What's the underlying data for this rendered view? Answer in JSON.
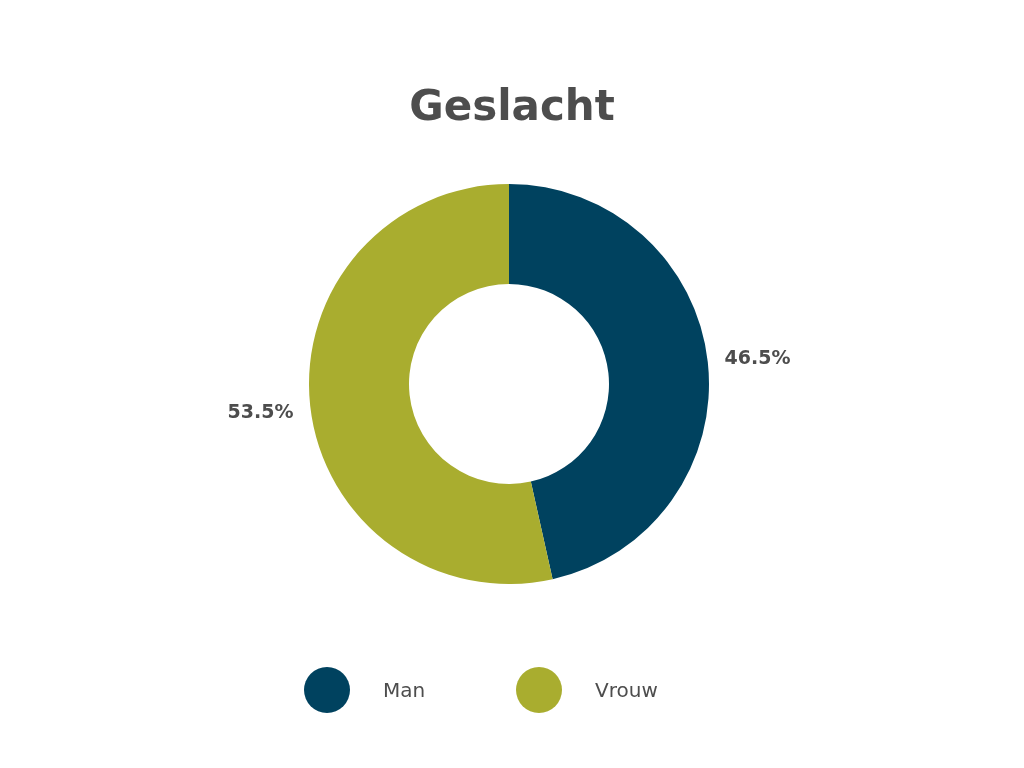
{
  "chart_data": {
    "type": "donut",
    "title": "Geslacht",
    "categories": [
      "Man",
      "Vrouw"
    ],
    "values": [
      46.5,
      53.5
    ],
    "colors": [
      "#00425f",
      "#a9ad2f"
    ],
    "value_labels": [
      "46.5%",
      "53.5%"
    ],
    "legend": "bottom"
  }
}
